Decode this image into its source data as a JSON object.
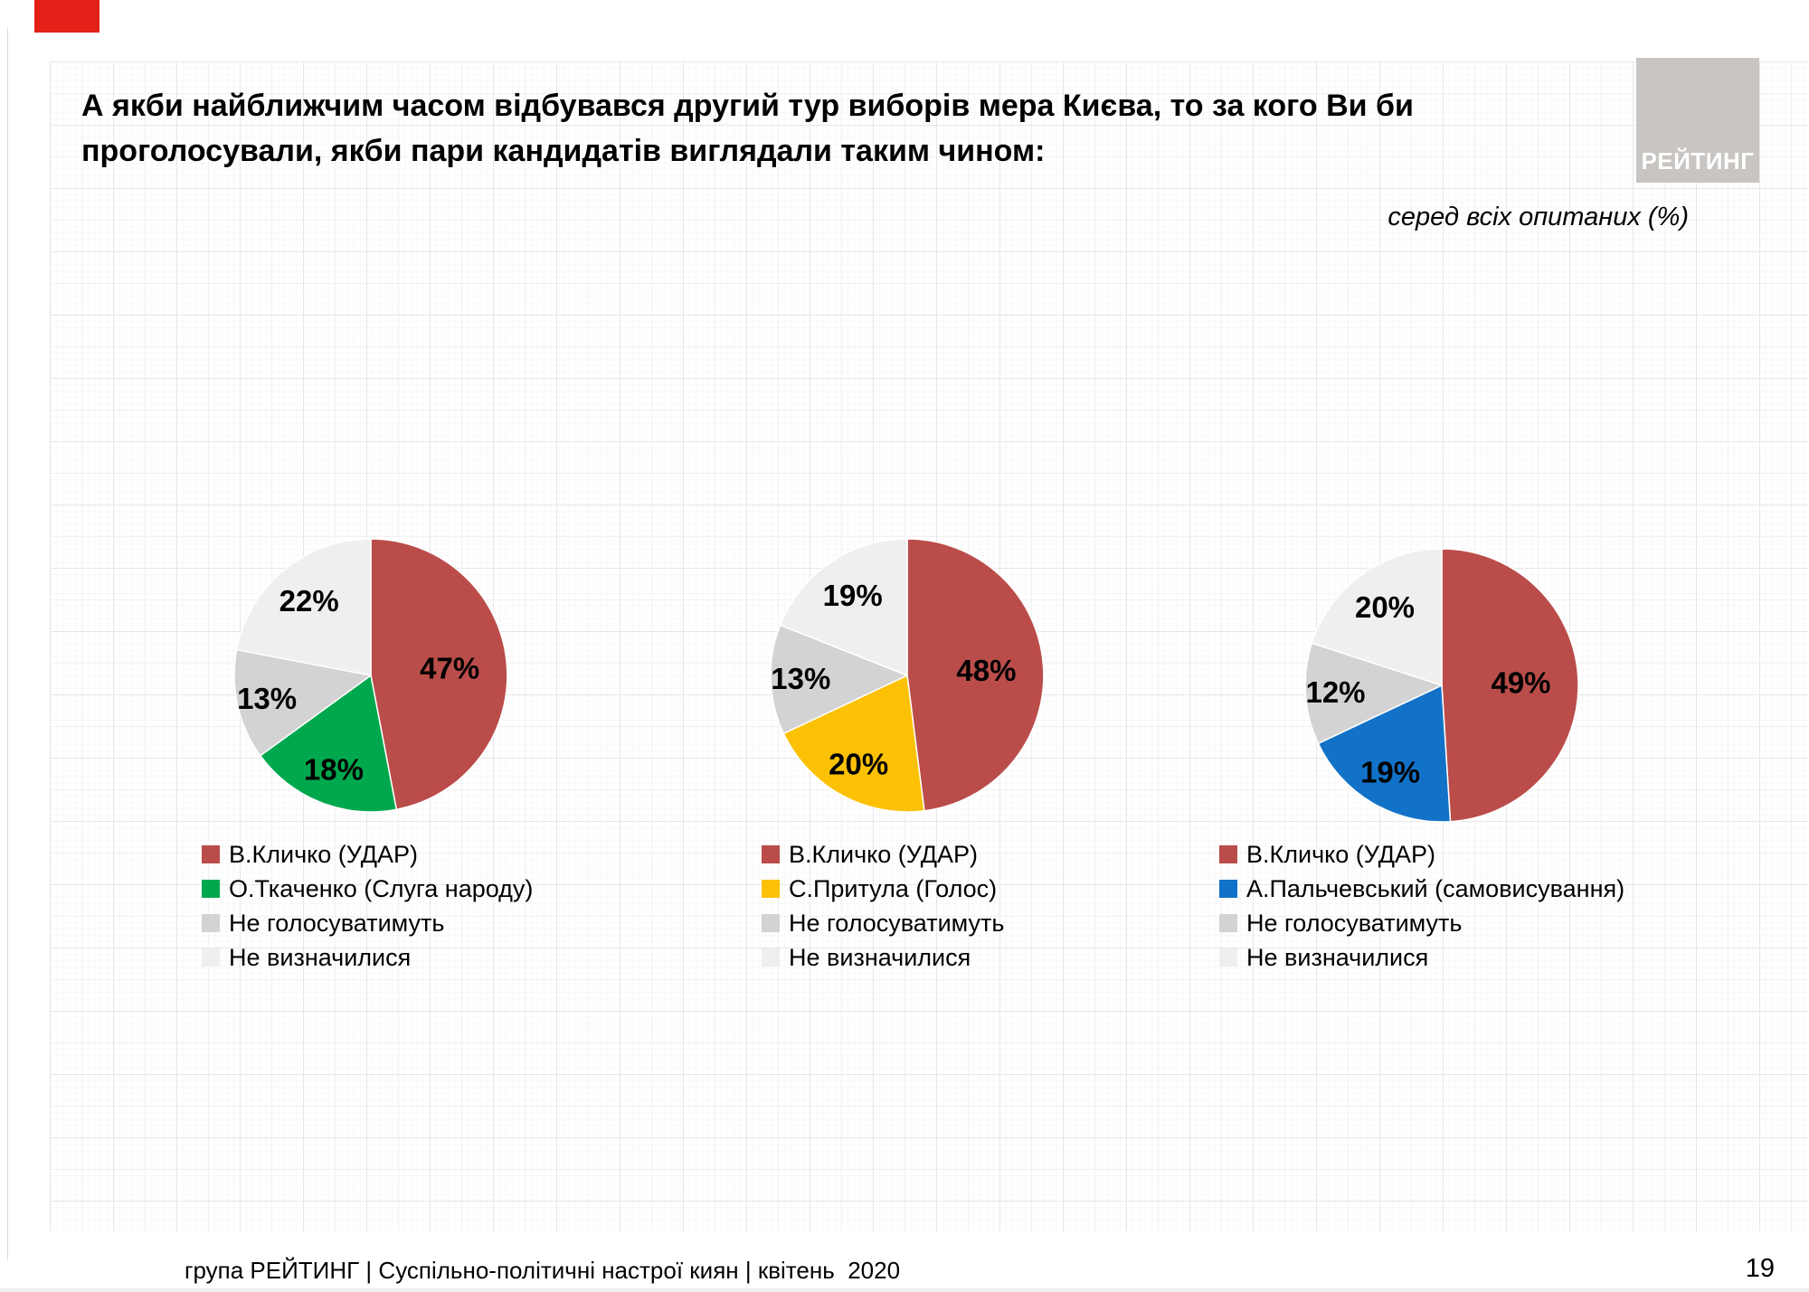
{
  "header": {
    "title": "А якби найближчим часом відбувався другий тур виборів мера Києва, то за кого Ви би\nпроголосували, якби пари кандидатів виглядали таким чином:",
    "subtitle": "серед всіх опитаних (%)",
    "logo_text": "РЕЙТИНГ"
  },
  "footer": {
    "text": "група РЕЙТИНГ | Суспільно-політичні настрої киян | квітень  2020",
    "page_number": "19"
  },
  "colors": {
    "klychko_red": "#ba4d4a",
    "tkachenko_green": "#00a84d",
    "prytula_yellow": "#fcc105",
    "palchevskyi_blue": "#1272c8",
    "no_vote_gray": "#d3d3d3",
    "undecided_lightgray": "#f0efef",
    "logo_gray": "#c8c5c2",
    "corner_red": "#e32119"
  },
  "chart_data": [
    {
      "type": "pie",
      "start_angle_deg": 0,
      "direction": "clockwise",
      "legend_position": "bottom-left",
      "slices": [
        {
          "label": "В.Кличко (УДАР)",
          "value": 47,
          "color": "#ba4d4a"
        },
        {
          "label": "О.Ткаченко (Слуга народу)",
          "value": 18,
          "color": "#00a84d"
        },
        {
          "label": "Не голосуватимуть",
          "value": 13,
          "color": "#d3d3d3"
        },
        {
          "label": "Не визначилися",
          "value": 22,
          "color": "#f0efef"
        }
      ]
    },
    {
      "type": "pie",
      "start_angle_deg": 0,
      "direction": "clockwise",
      "legend_position": "bottom-left",
      "slices": [
        {
          "label": "В.Кличко (УДАР)",
          "value": 48,
          "color": "#ba4d4a"
        },
        {
          "label": "С.Притула (Голос)",
          "value": 20,
          "color": "#fcc105"
        },
        {
          "label": "Не голосуватимуть",
          "value": 13,
          "color": "#d3d3d3"
        },
        {
          "label": "Не визначилися",
          "value": 19,
          "color": "#f0efef"
        }
      ]
    },
    {
      "type": "pie",
      "start_angle_deg": 0,
      "direction": "clockwise",
      "legend_position": "bottom-left",
      "slices": [
        {
          "label": "В.Кличко (УДАР)",
          "value": 49,
          "color": "#ba4d4a"
        },
        {
          "label": "А.Пальчевський (самовисування)",
          "value": 19,
          "color": "#1272c8"
        },
        {
          "label": "Не голосуватимуть",
          "value": 12,
          "color": "#d3d3d3"
        },
        {
          "label": "Не визначилися",
          "value": 20,
          "color": "#f0efef"
        }
      ]
    }
  ]
}
